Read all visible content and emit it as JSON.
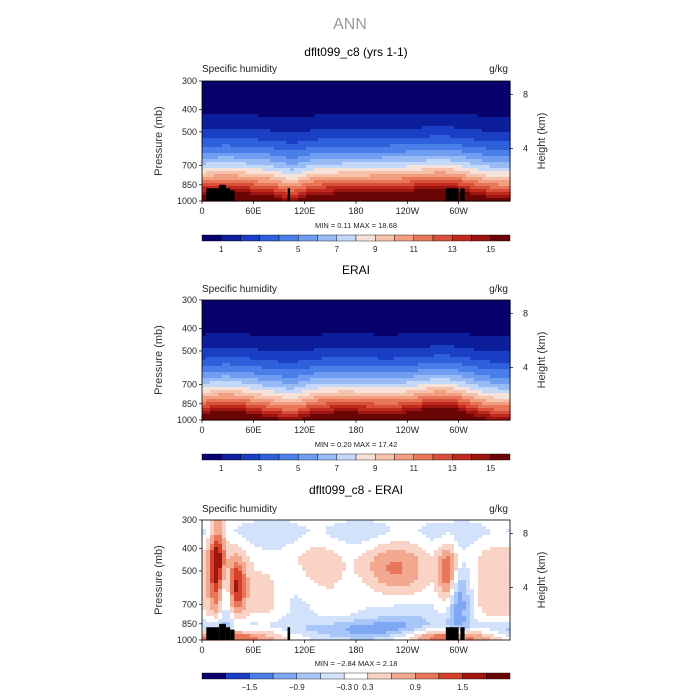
{
  "figure": {
    "main_title": "ANN",
    "colors": {
      "abs_scale": [
        "#08006b",
        "#0c1e9a",
        "#1a3fc4",
        "#2f60dc",
        "#4a7fe9",
        "#6f9df1",
        "#98bbf6",
        "#c4d9fa",
        "#f6e2d8",
        "#f7c2ac",
        "#f29e80",
        "#e8775a",
        "#d9503a",
        "#c02a1e",
        "#9b1410",
        "#6b0505"
      ],
      "diff_scale": [
        "#08006b",
        "#1a3fc4",
        "#4a7fe9",
        "#7ea8f3",
        "#a9c6f8",
        "#d2e2fb",
        "#ffffff",
        "#f9d4c6",
        "#f3a98f",
        "#e8775a",
        "#d4402c",
        "#a0150e",
        "#6b0505"
      ],
      "topo": "#000000"
    },
    "panels": [
      {
        "title": "dflt099_c8 (yrs 1-1)",
        "left_label": "Specific humidity",
        "right_label": "g/kg",
        "stats": "MIN =    0.11   MAX =   18.68",
        "colorbar_labels": [
          "1",
          "3",
          "5",
          "7",
          "9",
          "11",
          "13",
          "15"
        ],
        "has_topo": true
      },
      {
        "title": "ERAI",
        "left_label": "Specific humidity",
        "right_label": "g/kg",
        "stats": "MIN =    0.20   MAX =   17.42",
        "colorbar_labels": [
          "1",
          "3",
          "5",
          "7",
          "9",
          "11",
          "13",
          "15"
        ],
        "has_topo": false
      },
      {
        "title": "dflt099_c8 - ERAI",
        "left_label": "Specific humidity",
        "right_label": "g/kg",
        "stats": "MIN =  −2.84   MAX =    2.18",
        "colorbar_labels": [
          "−1.5",
          "−0.9",
          "−0.3",
          "0",
          "0.3",
          "0.9",
          "1.5"
        ],
        "has_topo": true
      }
    ]
  },
  "chart_data": [
    {
      "type": "heatmap",
      "title": "dflt099_c8 (yrs 1-1)",
      "variable": "Specific humidity",
      "units": "g/kg",
      "xlabel": "",
      "ylabel": "Pressure (mb)",
      "y2label": "Height (km)",
      "x_ticks": [
        "0",
        "60E",
        "120E",
        "180",
        "120W",
        "60W"
      ],
      "x_tick_lon": [
        0,
        60,
        120,
        180,
        240,
        300
      ],
      "xlim": [
        0,
        360
      ],
      "y_ticks": [
        300,
        400,
        500,
        700,
        850,
        1000
      ],
      "ylim": [
        1000,
        300
      ],
      "y_scale": "log",
      "y2_ticks": [
        8,
        4
      ],
      "min": 0.11,
      "max": 18.68,
      "contour_levels": [
        1,
        2,
        3,
        4,
        5,
        6,
        7,
        8,
        9,
        10,
        11,
        12,
        13,
        14,
        15
      ],
      "colorbar_ticks": [
        1,
        3,
        5,
        7,
        9,
        11,
        13,
        15
      ]
    },
    {
      "type": "heatmap",
      "title": "ERAI",
      "variable": "Specific humidity",
      "units": "g/kg",
      "xlabel": "",
      "ylabel": "Pressure (mb)",
      "y2label": "Height (km)",
      "x_ticks": [
        "0",
        "60E",
        "120E",
        "180",
        "120W",
        "60W"
      ],
      "x_tick_lon": [
        0,
        60,
        120,
        180,
        240,
        300
      ],
      "xlim": [
        0,
        360
      ],
      "y_ticks": [
        300,
        400,
        500,
        700,
        850,
        1000
      ],
      "ylim": [
        1000,
        300
      ],
      "y_scale": "log",
      "y2_ticks": [
        8,
        4
      ],
      "min": 0.2,
      "max": 17.42,
      "contour_levels": [
        1,
        2,
        3,
        4,
        5,
        6,
        7,
        8,
        9,
        10,
        11,
        12,
        13,
        14,
        15
      ],
      "colorbar_ticks": [
        1,
        3,
        5,
        7,
        9,
        11,
        13,
        15
      ]
    },
    {
      "type": "heatmap",
      "title": "dflt099_c8 - ERAI",
      "variable": "Specific humidity",
      "units": "g/kg",
      "xlabel": "",
      "ylabel": "Pressure (mb)",
      "y2label": "Height (km)",
      "x_ticks": [
        "0",
        "60E",
        "120E",
        "180",
        "120W",
        "60W"
      ],
      "x_tick_lon": [
        0,
        60,
        120,
        180,
        240,
        300
      ],
      "xlim": [
        0,
        360
      ],
      "y_ticks": [
        300,
        400,
        500,
        700,
        850,
        1000
      ],
      "ylim": [
        1000,
        300
      ],
      "y_scale": "log",
      "y2_ticks": [
        8,
        4
      ],
      "min": -2.84,
      "max": 2.18,
      "contour_levels": [
        -1.8,
        -1.5,
        -1.2,
        -0.9,
        -0.6,
        -0.3,
        0,
        0.3,
        0.6,
        0.9,
        1.2,
        1.5,
        1.8
      ],
      "colorbar_ticks": [
        -1.5,
        -0.9,
        -0.3,
        0,
        0.3,
        0.9,
        1.5
      ]
    }
  ]
}
